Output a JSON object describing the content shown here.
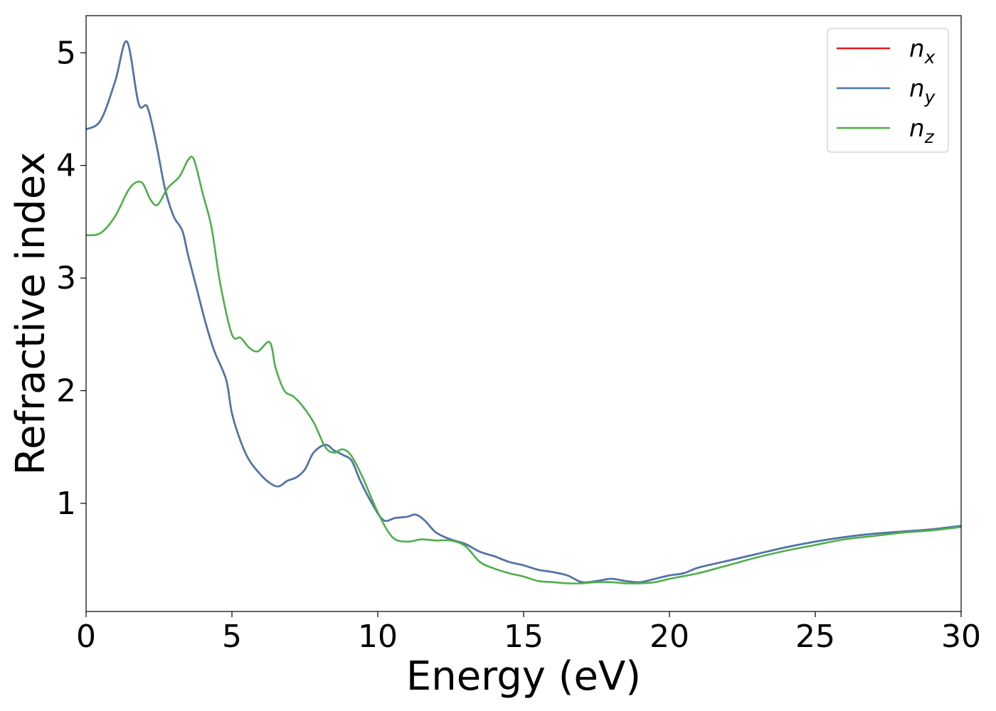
{
  "chart_data": {
    "type": "line",
    "xlabel": "Energy (eV)",
    "ylabel": "Refractive index",
    "xlim": [
      0,
      30
    ],
    "ylim": [
      0.04,
      5.33
    ],
    "xticks": [
      0,
      5,
      10,
      15,
      20,
      25,
      30
    ],
    "yticks": [
      1,
      2,
      3,
      4,
      5
    ],
    "grid": false,
    "legend_position": "top-right",
    "series": [
      {
        "name": "n_x",
        "legend_base": "n",
        "legend_sub": "x",
        "color": "#e41a1c",
        "x": [
          0,
          0.5,
          1.0,
          1.4,
          1.8,
          2.1,
          2.4,
          2.7,
          3.0,
          3.3,
          3.5,
          3.8,
          4.1,
          4.4,
          4.8,
          5.0,
          5.3,
          5.6,
          6.0,
          6.3,
          6.6,
          6.9,
          7.2,
          7.5,
          7.8,
          8.2,
          8.5,
          8.8,
          9.1,
          9.4,
          9.8,
          10.2,
          10.6,
          11.0,
          11.3,
          11.6,
          12.0,
          12.5,
          13.0,
          13.5,
          14.0,
          14.5,
          15.0,
          15.5,
          16.0,
          16.5,
          17.0,
          17.5,
          18.0,
          18.5,
          19.0,
          19.5,
          20.0,
          20.5,
          21.0,
          22.0,
          23.0,
          24.0,
          25.0,
          26.0,
          27.0,
          28.0,
          29.0,
          30.0
        ],
        "values": [
          4.32,
          4.4,
          4.75,
          5.1,
          4.55,
          4.52,
          4.2,
          3.8,
          3.55,
          3.42,
          3.2,
          2.9,
          2.6,
          2.35,
          2.1,
          1.8,
          1.55,
          1.38,
          1.25,
          1.18,
          1.15,
          1.2,
          1.23,
          1.3,
          1.45,
          1.52,
          1.47,
          1.43,
          1.38,
          1.2,
          1.0,
          0.85,
          0.87,
          0.88,
          0.9,
          0.85,
          0.74,
          0.68,
          0.64,
          0.57,
          0.53,
          0.48,
          0.45,
          0.41,
          0.39,
          0.36,
          0.3,
          0.31,
          0.33,
          0.31,
          0.3,
          0.33,
          0.36,
          0.38,
          0.43,
          0.49,
          0.55,
          0.61,
          0.66,
          0.7,
          0.73,
          0.75,
          0.77,
          0.8
        ]
      },
      {
        "name": "n_y",
        "legend_base": "n",
        "legend_sub": "y",
        "color": "#4a78ad",
        "x": [
          0,
          0.5,
          1.0,
          1.4,
          1.8,
          2.1,
          2.4,
          2.7,
          3.0,
          3.3,
          3.5,
          3.8,
          4.1,
          4.4,
          4.8,
          5.0,
          5.3,
          5.6,
          6.0,
          6.3,
          6.6,
          6.9,
          7.2,
          7.5,
          7.8,
          8.2,
          8.5,
          8.8,
          9.1,
          9.4,
          9.8,
          10.2,
          10.6,
          11.0,
          11.3,
          11.6,
          12.0,
          12.5,
          13.0,
          13.5,
          14.0,
          14.5,
          15.0,
          15.5,
          16.0,
          16.5,
          17.0,
          17.5,
          18.0,
          18.5,
          19.0,
          19.5,
          20.0,
          20.5,
          21.0,
          22.0,
          23.0,
          24.0,
          25.0,
          26.0,
          27.0,
          28.0,
          29.0,
          30.0
        ],
        "values": [
          4.32,
          4.4,
          4.75,
          5.1,
          4.55,
          4.52,
          4.2,
          3.8,
          3.55,
          3.42,
          3.2,
          2.9,
          2.6,
          2.35,
          2.1,
          1.8,
          1.55,
          1.38,
          1.25,
          1.18,
          1.15,
          1.2,
          1.23,
          1.3,
          1.45,
          1.52,
          1.47,
          1.43,
          1.38,
          1.2,
          1.0,
          0.85,
          0.87,
          0.88,
          0.9,
          0.85,
          0.74,
          0.68,
          0.64,
          0.57,
          0.53,
          0.48,
          0.45,
          0.41,
          0.39,
          0.36,
          0.3,
          0.31,
          0.33,
          0.31,
          0.3,
          0.33,
          0.36,
          0.38,
          0.43,
          0.49,
          0.55,
          0.61,
          0.66,
          0.7,
          0.73,
          0.75,
          0.77,
          0.8
        ]
      },
      {
        "name": "n_z",
        "legend_base": "n",
        "legend_sub": "z",
        "color": "#4daf4a",
        "x": [
          0,
          0.5,
          1.0,
          1.5,
          1.9,
          2.2,
          2.45,
          2.8,
          3.2,
          3.5,
          3.7,
          4.0,
          4.3,
          4.6,
          5.0,
          5.3,
          5.6,
          5.9,
          6.3,
          6.5,
          6.8,
          7.1,
          7.4,
          7.8,
          8.2,
          8.5,
          8.8,
          9.1,
          9.5,
          10.0,
          10.5,
          11.0,
          11.5,
          12.0,
          12.5,
          13.0,
          13.5,
          14.0,
          14.5,
          15.0,
          15.5,
          16.0,
          16.5,
          17.0,
          17.5,
          18.0,
          18.5,
          19.0,
          19.5,
          20.0,
          21.0,
          22.0,
          23.0,
          24.0,
          25.0,
          26.0,
          27.0,
          28.0,
          29.0,
          30.0
        ],
        "values": [
          3.38,
          3.4,
          3.55,
          3.8,
          3.85,
          3.7,
          3.65,
          3.8,
          3.9,
          4.05,
          4.05,
          3.75,
          3.45,
          2.95,
          2.5,
          2.47,
          2.38,
          2.35,
          2.43,
          2.2,
          2.0,
          1.95,
          1.87,
          1.72,
          1.5,
          1.45,
          1.48,
          1.42,
          1.22,
          0.92,
          0.7,
          0.66,
          0.68,
          0.67,
          0.67,
          0.62,
          0.48,
          0.42,
          0.38,
          0.35,
          0.31,
          0.3,
          0.29,
          0.29,
          0.3,
          0.3,
          0.29,
          0.29,
          0.3,
          0.33,
          0.38,
          0.45,
          0.52,
          0.58,
          0.63,
          0.68,
          0.71,
          0.74,
          0.76,
          0.79
        ]
      }
    ]
  }
}
